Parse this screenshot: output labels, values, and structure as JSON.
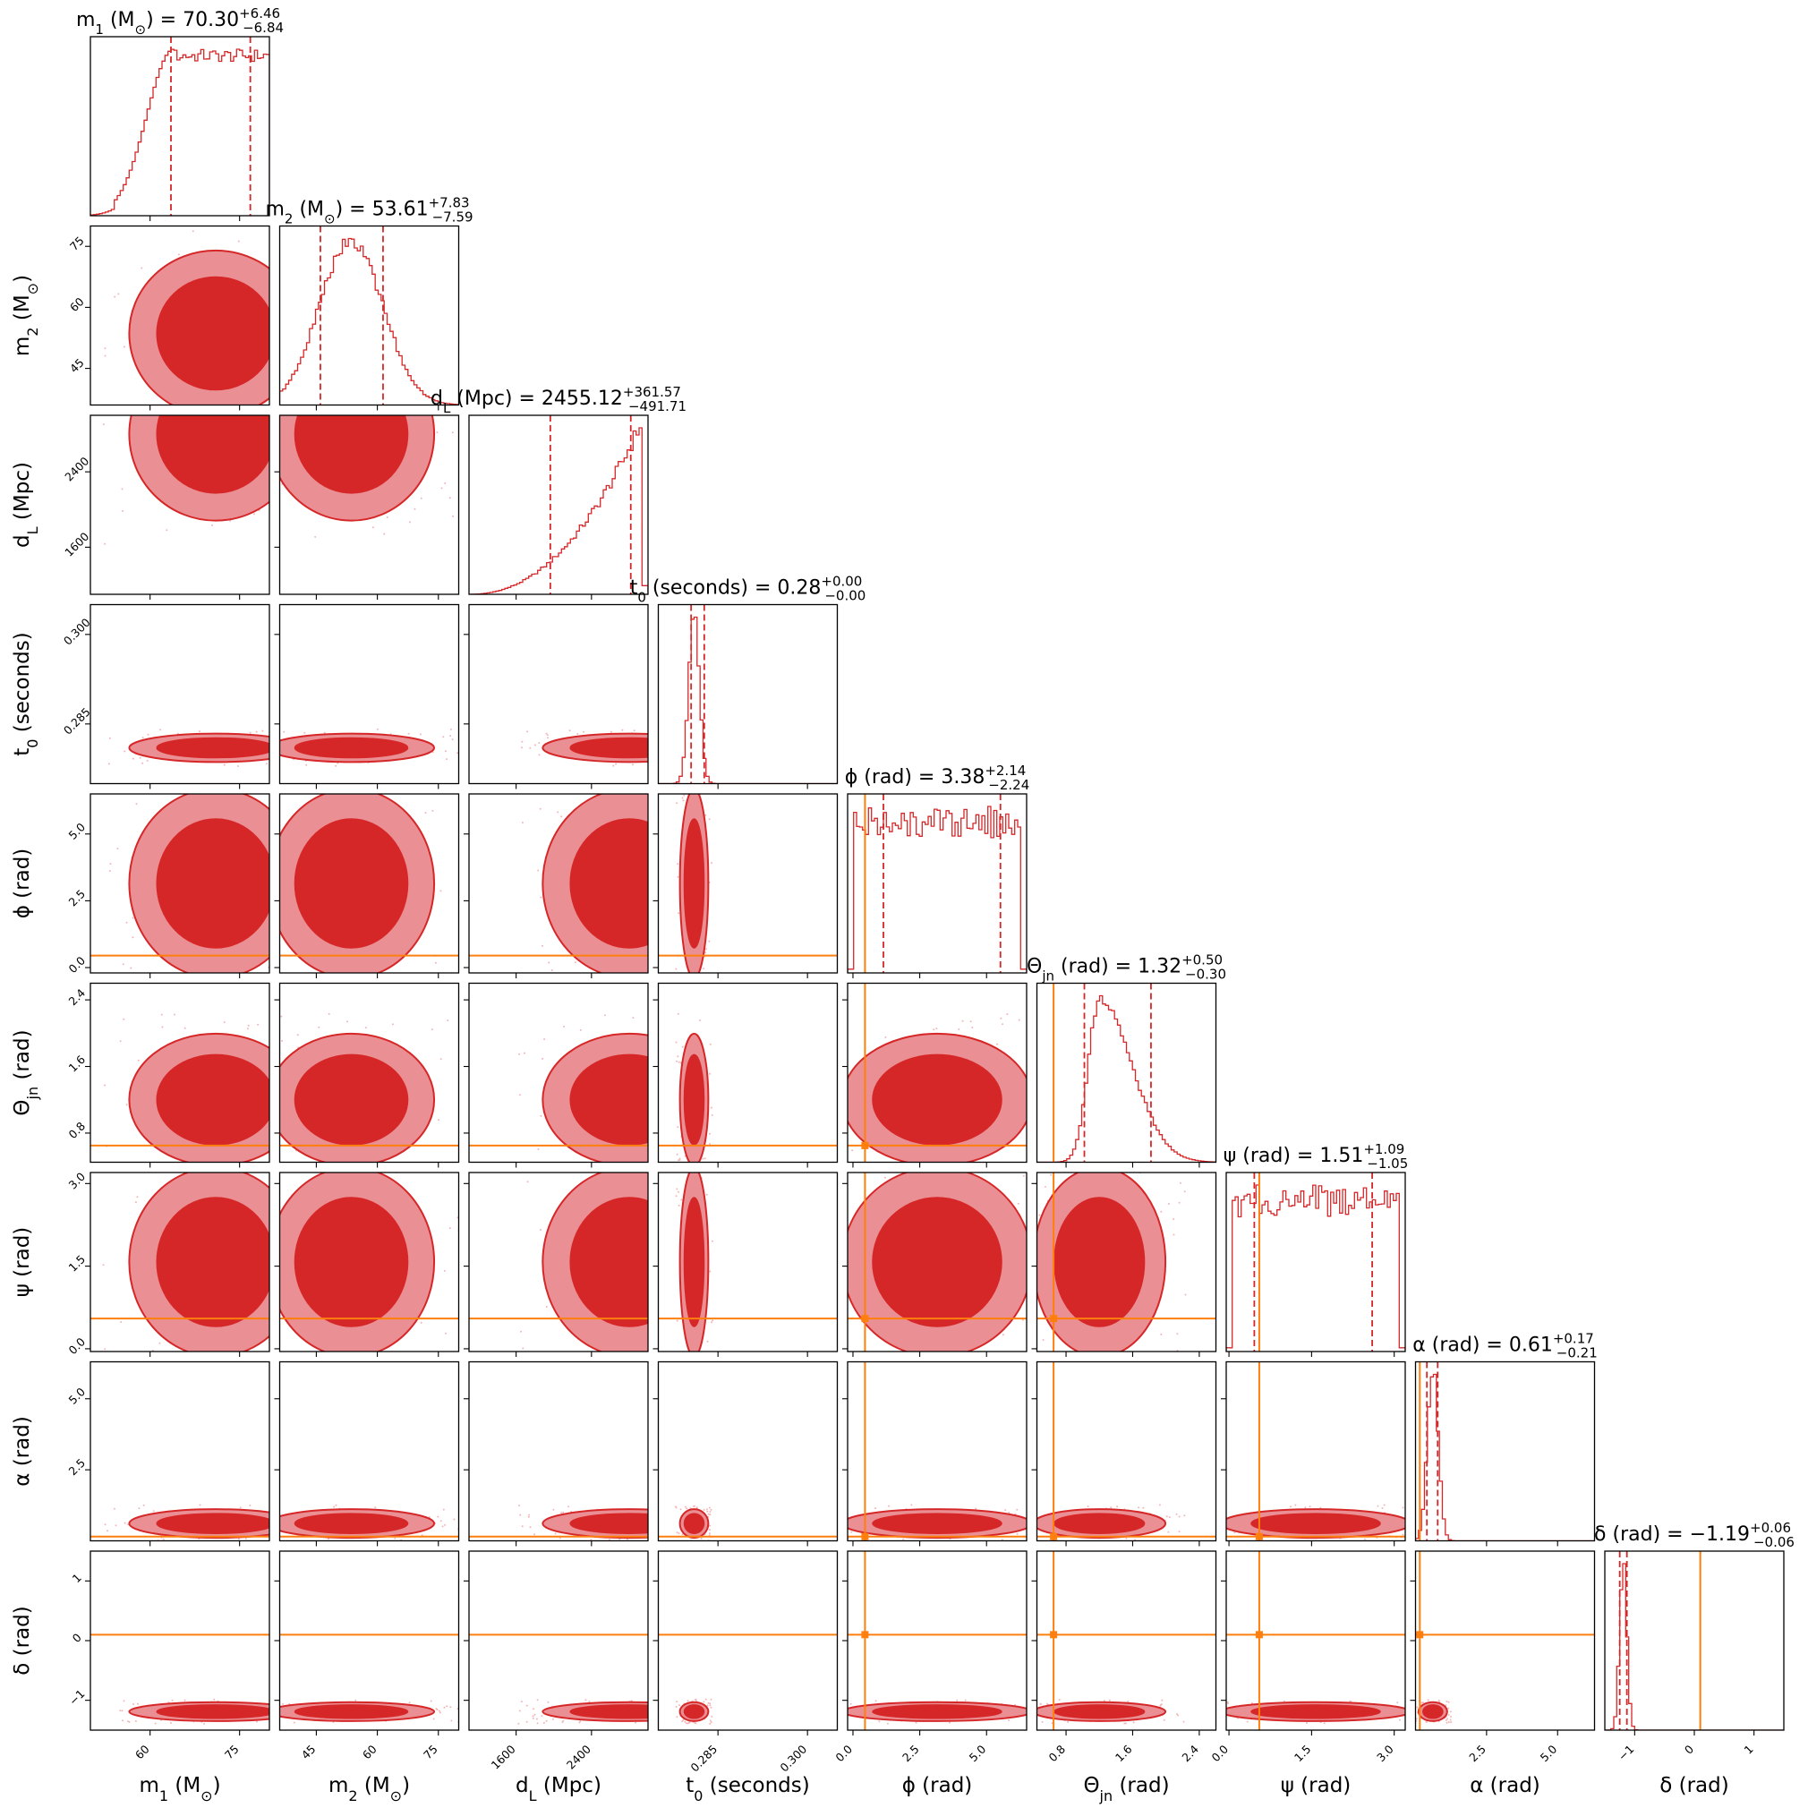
{
  "chart_data": {
    "type": "corner",
    "colors": {
      "posterior": "#d62728",
      "inner_fill": "#d62728",
      "outer_fill": "#ea8f93",
      "injection": "#ff7f0e",
      "scatter": "#f3b6b8"
    },
    "parameters": [
      {
        "key": "m1",
        "label": "m_1 (M_⊙)",
        "range": [
          50,
          80
        ],
        "ticks": [
          "60",
          "75"
        ],
        "median": "70.30",
        "plus": "+6.46",
        "minus": "−6.84",
        "hist_peak": 71,
        "hist_sigma": 7,
        "hist_shape": "plateau",
        "quantiles": [
          63.5,
          76.8
        ],
        "injected": null
      },
      {
        "key": "m2",
        "label": "m_2 (M_⊙)",
        "range": [
          36,
          80
        ],
        "ticks": [
          "45",
          "60",
          "75"
        ],
        "median": "53.61",
        "plus": "+7.83",
        "minus": "−7.59",
        "hist_peak": 53.6,
        "hist_sigma": 7.7,
        "hist_shape": "gauss",
        "quantiles": [
          46.0,
          61.4
        ],
        "injected": null
      },
      {
        "key": "dL",
        "label": "d_L (Mpc)",
        "range": [
          1100,
          3000
        ],
        "ticks": [
          "1600",
          "2400"
        ],
        "median": "2455.12",
        "plus": "+361.57",
        "minus": "−491.71",
        "hist_peak": 2800,
        "hist_sigma": 450,
        "hist_shape": "rising",
        "quantiles": [
          1963,
          2817
        ],
        "injected": null
      },
      {
        "key": "t0",
        "label": "t_0 (seconds)",
        "range": [
          0.275,
          0.305
        ],
        "ticks": [
          "0.285",
          "0.300"
        ],
        "median": "0.28",
        "plus": "+0.00",
        "minus": "−0.00",
        "hist_peak": 0.281,
        "hist_sigma": 0.0009,
        "hist_shape": "gauss",
        "quantiles": [
          0.2805,
          0.2827
        ],
        "injected": null
      },
      {
        "key": "phi",
        "label": "ϕ (rad)",
        "range": [
          -0.2,
          6.5
        ],
        "ticks": [
          "0.0",
          "2.5",
          "5.0"
        ],
        "median": "3.38",
        "plus": "+2.14",
        "minus": "−2.24",
        "hist_shape": "flat",
        "quantiles": [
          1.14,
          5.52
        ],
        "injected": 0.45
      },
      {
        "key": "theta_jn",
        "label": "Θ_jn (rad)",
        "range": [
          0.45,
          2.6
        ],
        "ticks": [
          "0.8",
          "1.6",
          "2.4"
        ],
        "median": "1.32",
        "plus": "+0.50",
        "minus": "−0.30",
        "hist_peak": 1.2,
        "hist_sigma": 0.3,
        "hist_shape": "skew",
        "quantiles": [
          1.02,
          1.82
        ],
        "injected": 0.65
      },
      {
        "key": "psi",
        "label": "ψ (rad)",
        "range": [
          -0.05,
          3.2
        ],
        "ticks": [
          "0.0",
          "1.5",
          "3.0"
        ],
        "median": "1.51",
        "plus": "+1.09",
        "minus": "−1.05",
        "hist_shape": "flat",
        "quantiles": [
          0.46,
          2.6
        ],
        "injected": 0.55
      },
      {
        "key": "alpha",
        "label": "α (rad)",
        "range": [
          0,
          6.3
        ],
        "ticks": [
          "2.5",
          "5.0"
        ],
        "median": "0.61",
        "plus": "+0.17",
        "minus": "−0.21",
        "hist_peak": 0.61,
        "hist_sigma": 0.19,
        "hist_shape": "gauss",
        "quantiles": [
          0.4,
          0.78
        ],
        "injected": 0.15
      },
      {
        "key": "delta",
        "label": "δ (rad)",
        "range": [
          -1.5,
          1.5
        ],
        "ticks": [
          "−1",
          "0",
          "1"
        ],
        "median": "−1.19",
        "plus": "+0.06",
        "minus": "−0.06",
        "hist_peak": -1.19,
        "hist_sigma": 0.06,
        "hist_shape": "gauss",
        "quantiles": [
          -1.25,
          -1.13
        ],
        "injected": 0.1
      }
    ]
  }
}
